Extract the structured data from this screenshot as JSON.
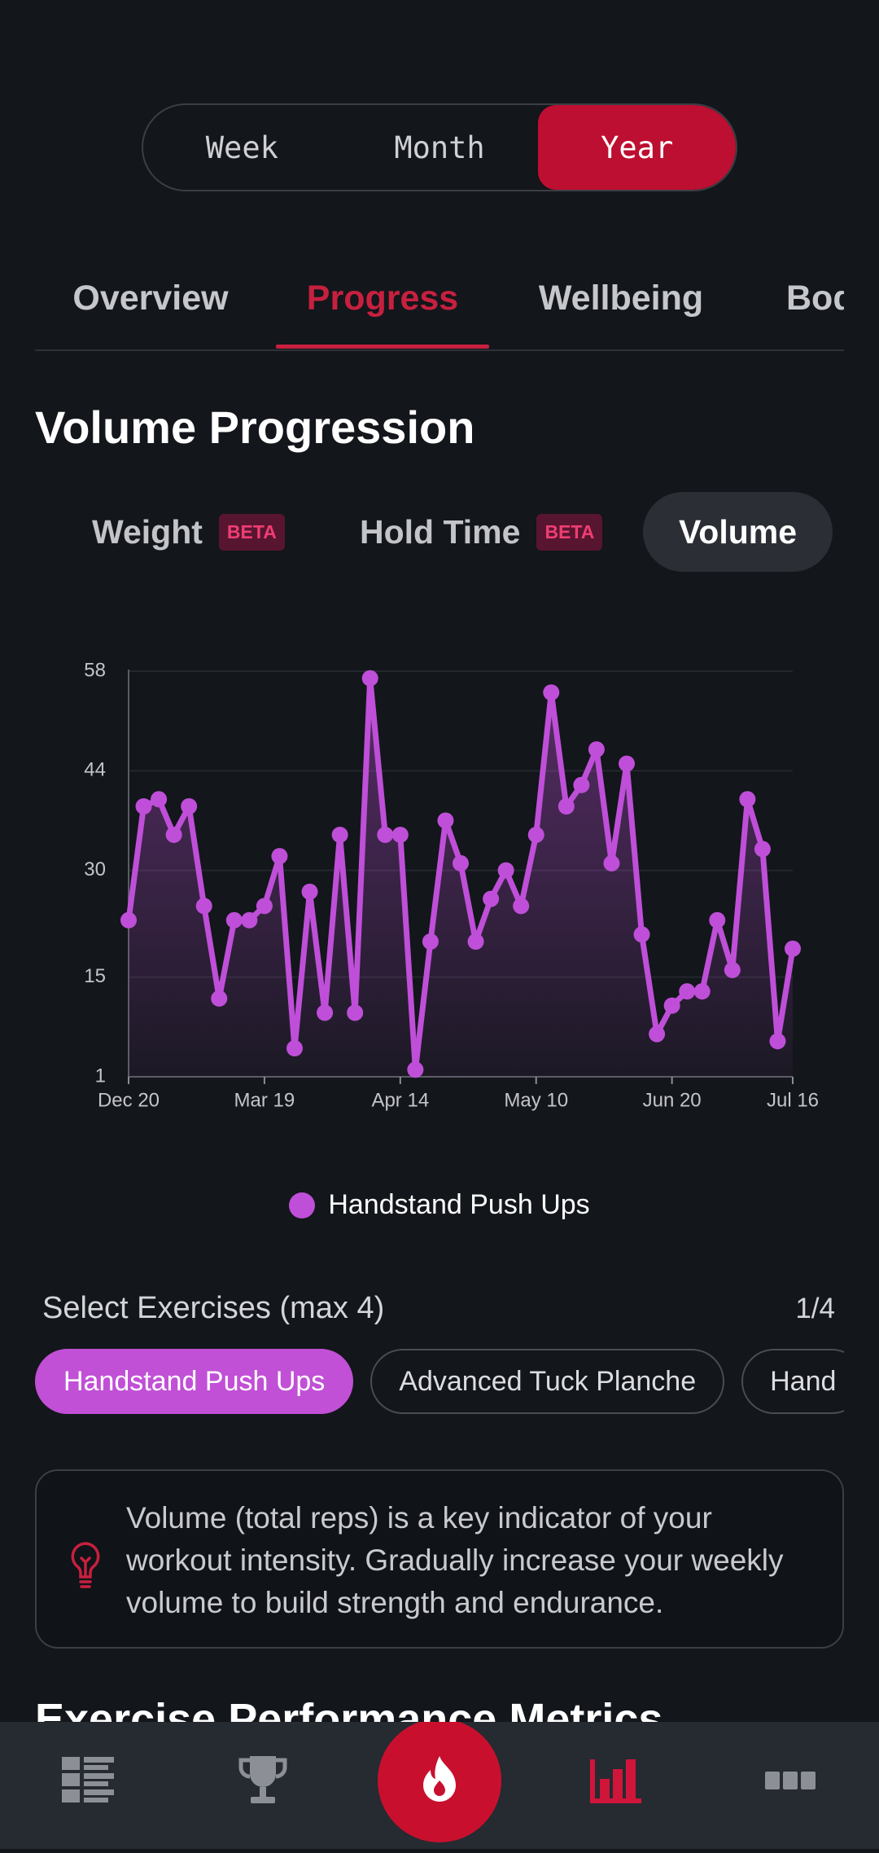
{
  "period_tabs": {
    "items": [
      "Week",
      "Month",
      "Year"
    ],
    "selected": 2
  },
  "nav_tabs": {
    "items": [
      "Overview",
      "Progress",
      "Wellbeing",
      "Bod"
    ],
    "selected": 1
  },
  "section_title": "Volume Progression",
  "metric_tabs": {
    "items": [
      {
        "label": "Weight",
        "badge": "BETA"
      },
      {
        "label": "Hold Time",
        "badge": "BETA"
      },
      {
        "label": "Volume"
      }
    ],
    "selected": 2
  },
  "chart_data": {
    "type": "line",
    "categories": [
      "Dec 20",
      null,
      null,
      null,
      null,
      null,
      null,
      null,
      null,
      "Mar 19",
      null,
      null,
      null,
      null,
      null,
      null,
      null,
      null,
      "Apr 14",
      null,
      null,
      null,
      null,
      null,
      null,
      null,
      null,
      "May 10",
      null,
      null,
      null,
      null,
      null,
      null,
      null,
      null,
      "Jun 20",
      null,
      null,
      null,
      null,
      null,
      null,
      null,
      "Jul 16"
    ],
    "series": [
      {
        "name": "Handstand Push Ups",
        "color": "#bf4fd8",
        "values": [
          23,
          39,
          40,
          35,
          39,
          25,
          12,
          23,
          23,
          25,
          32,
          5,
          27,
          10,
          35,
          10,
          57,
          35,
          35,
          2,
          20,
          37,
          31,
          20,
          26,
          30,
          25,
          35,
          55,
          39,
          42,
          47,
          31,
          45,
          21,
          7,
          11,
          13,
          13,
          23,
          16,
          40,
          33,
          6,
          19
        ]
      }
    ],
    "ylim": [
      1,
      58
    ],
    "yticks": [
      1,
      15,
      30,
      44,
      58
    ],
    "grid": true,
    "legend": "bottom"
  },
  "exercise_select": {
    "title": "Select Exercises (max 4)",
    "count": "1/4",
    "chips": [
      "Handstand Push Ups",
      "Advanced Tuck Planche",
      "Hand"
    ],
    "selected": 0
  },
  "tip": {
    "lines": [
      "Volume (total reps) is a key indicator of your",
      "workout intensity. Gradually increase your weekly",
      "volume to build strength and endurance."
    ]
  },
  "next_heading": "Exercise Performance Metrics",
  "bottom_nav": {
    "selected": 3
  }
}
